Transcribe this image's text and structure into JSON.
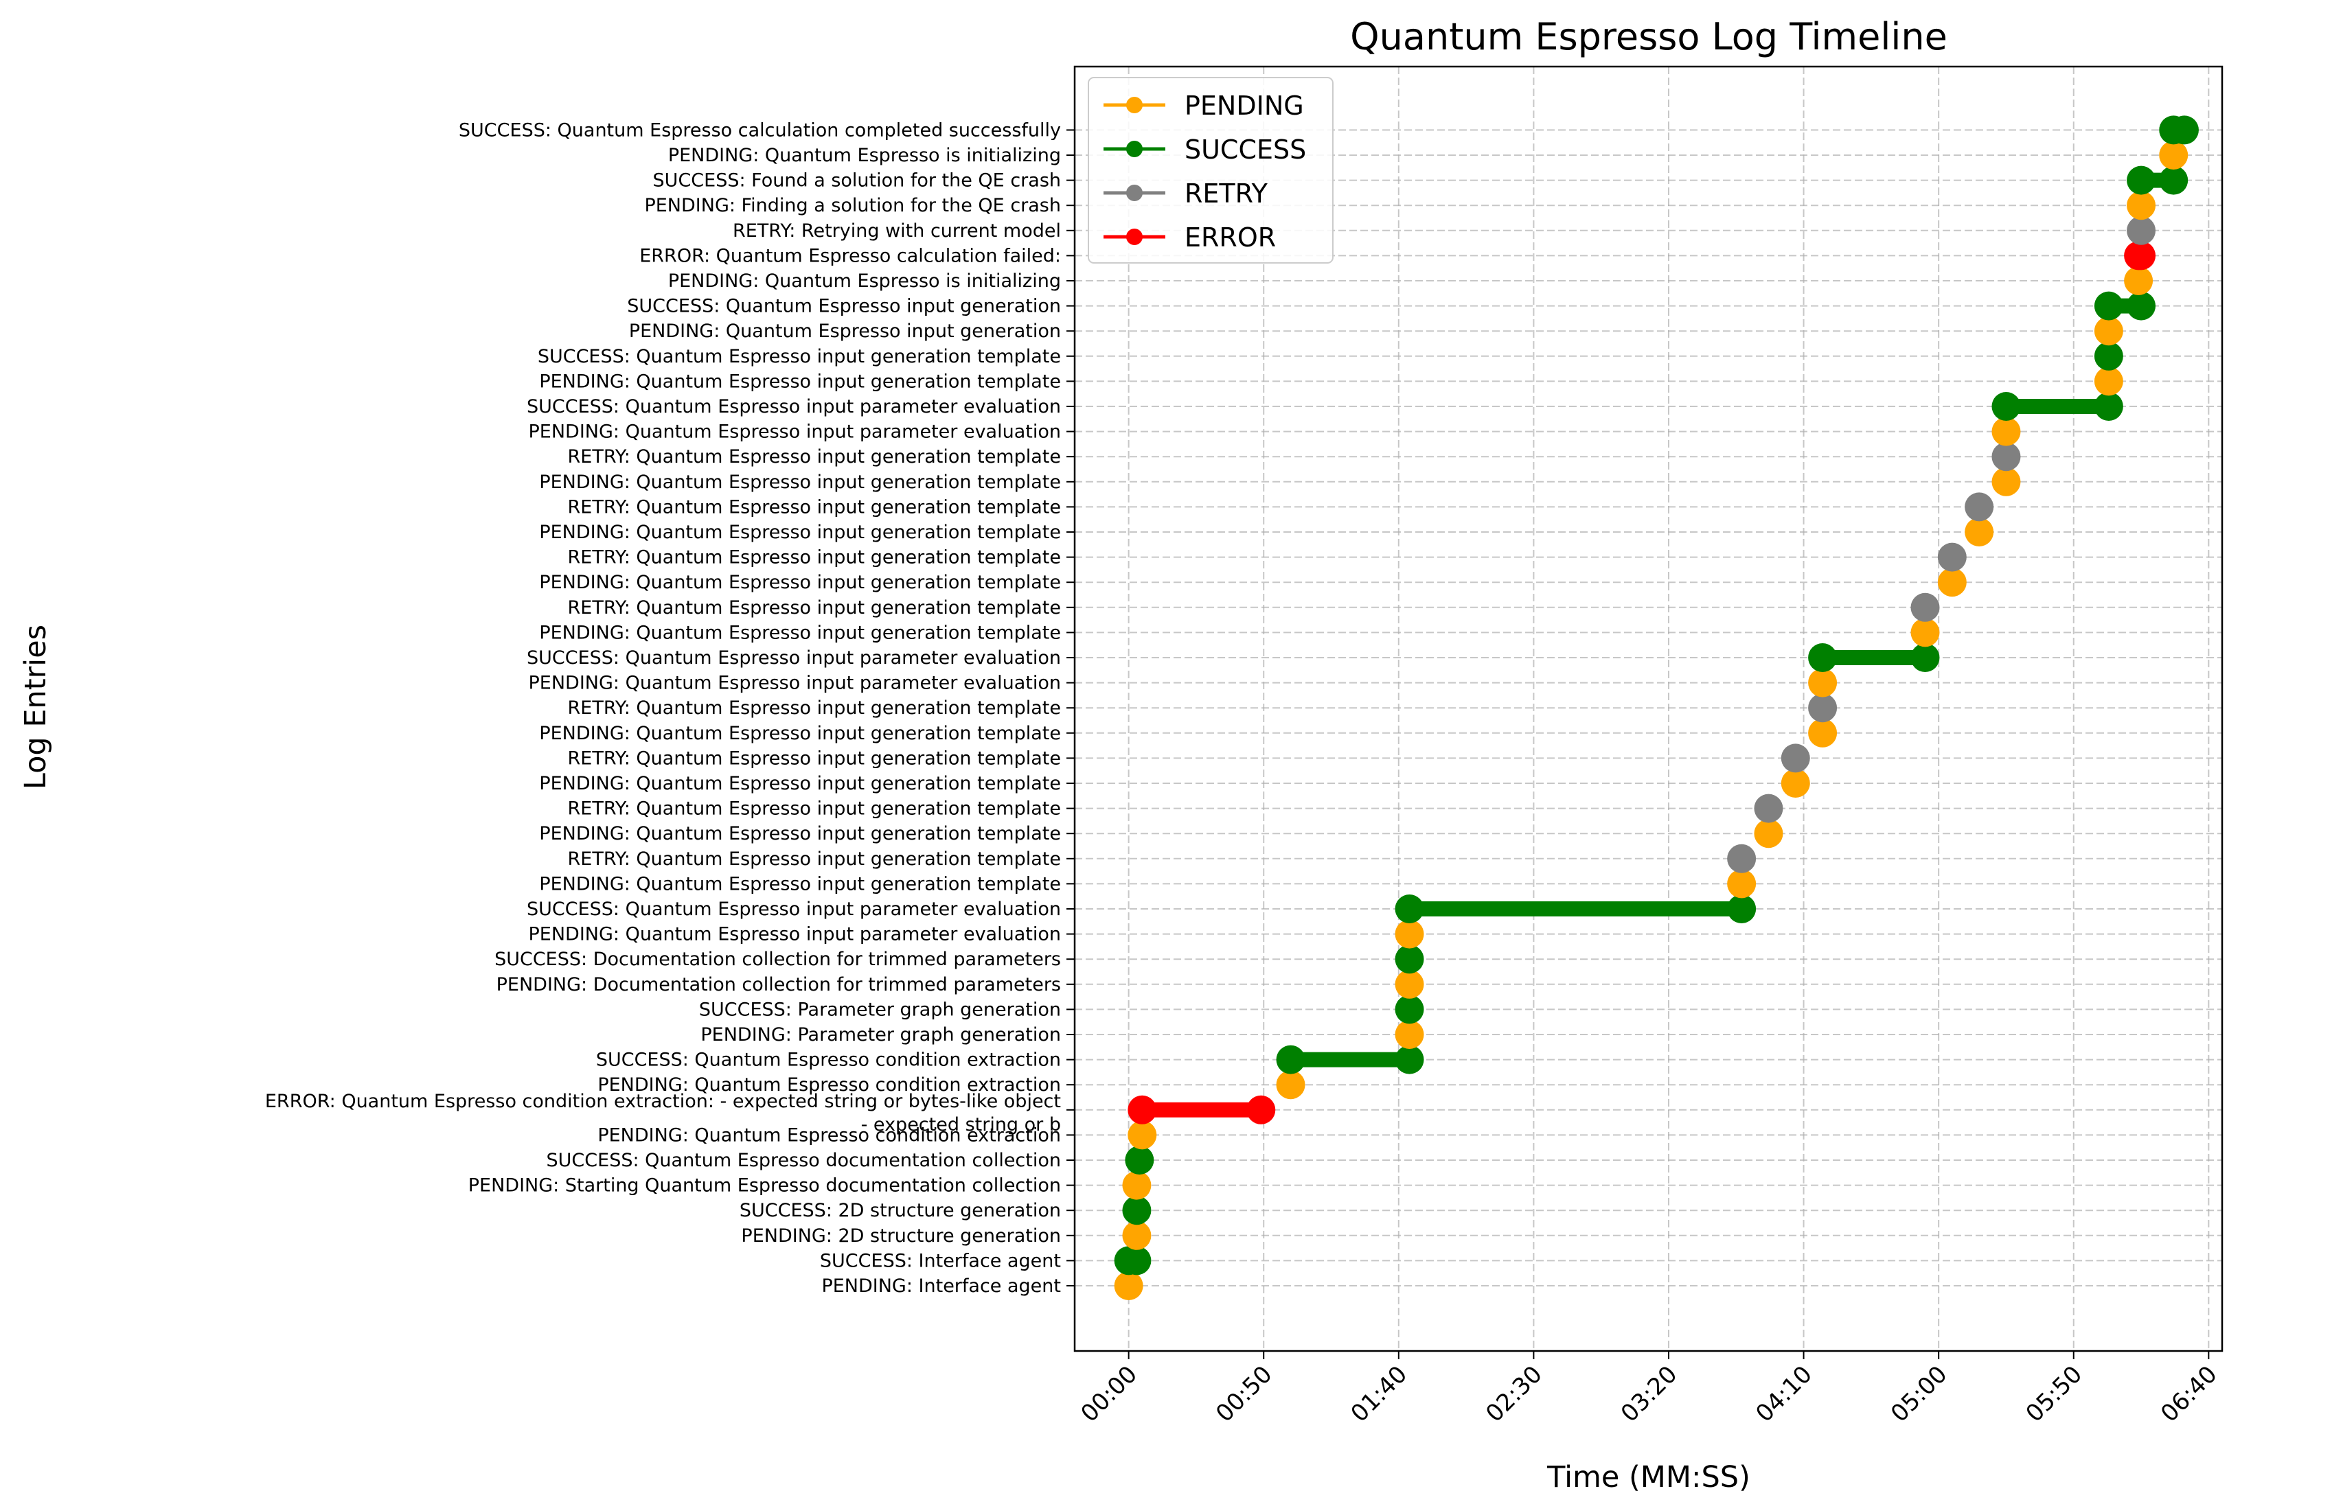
{
  "chart_data": {
    "type": "timeline",
    "title": "Quantum Espresso Log Timeline",
    "xlabel": "Time (MM:SS)",
    "ylabel": "Log Entries",
    "xlim": [
      -20,
      405
    ],
    "xticks": [
      0,
      50,
      100,
      150,
      200,
      250,
      300,
      350,
      400
    ],
    "xtick_labels": [
      "00:00",
      "00:50",
      "01:40",
      "02:30",
      "03:20",
      "04:10",
      "05:00",
      "05:50",
      "06:40"
    ],
    "grid": true,
    "legend_position": "top-left",
    "legend": [
      {
        "status": "PENDING",
        "label": "PENDING",
        "color": "#ffa500"
      },
      {
        "status": "SUCCESS",
        "label": "SUCCESS",
        "color": "#008000"
      },
      {
        "status": "RETRY",
        "label": "RETRY",
        "color": "#808080"
      },
      {
        "status": "ERROR",
        "label": "ERROR",
        "color": "#ff0000"
      }
    ],
    "entries": [
      {
        "label": "PENDING: Interface agent",
        "status": "PENDING",
        "time": 0
      },
      {
        "label": "SUCCESS: Interface agent",
        "status": "SUCCESS",
        "time": 0,
        "end": 3
      },
      {
        "label": "PENDING: 2D structure generation",
        "status": "PENDING",
        "time": 3
      },
      {
        "label": "SUCCESS: 2D structure generation",
        "status": "SUCCESS",
        "time": 3
      },
      {
        "label": "PENDING: Starting Quantum Espresso documentation collection",
        "status": "PENDING",
        "time": 3
      },
      {
        "label": "SUCCESS: Quantum Espresso documentation collection",
        "status": "SUCCESS",
        "time": 4
      },
      {
        "label": "PENDING: Quantum Espresso condition extraction",
        "status": "PENDING",
        "time": 5
      },
      {
        "label": "ERROR: Quantum Espresso condition extraction: - expected string or bytes-like object\n- expected string or b",
        "status": "ERROR",
        "time": 5,
        "end": 49
      },
      {
        "label": "PENDING: Quantum Espresso condition extraction",
        "status": "PENDING",
        "time": 60
      },
      {
        "label": "SUCCESS: Quantum Espresso condition extraction",
        "status": "SUCCESS",
        "time": 60,
        "end": 104
      },
      {
        "label": "PENDING: Parameter graph generation",
        "status": "PENDING",
        "time": 104
      },
      {
        "label": "SUCCESS: Parameter graph generation",
        "status": "SUCCESS",
        "time": 104
      },
      {
        "label": "PENDING: Documentation collection for trimmed parameters",
        "status": "PENDING",
        "time": 104
      },
      {
        "label": "SUCCESS: Documentation collection for trimmed parameters",
        "status": "SUCCESS",
        "time": 104
      },
      {
        "label": "PENDING: Quantum Espresso input parameter evaluation",
        "status": "PENDING",
        "time": 104
      },
      {
        "label": "SUCCESS: Quantum Espresso input parameter evaluation",
        "status": "SUCCESS",
        "time": 104,
        "end": 227
      },
      {
        "label": "PENDING: Quantum Espresso input generation template",
        "status": "PENDING",
        "time": 227
      },
      {
        "label": "RETRY: Quantum Espresso input generation template",
        "status": "RETRY",
        "time": 227
      },
      {
        "label": "PENDING: Quantum Espresso input generation template",
        "status": "PENDING",
        "time": 237
      },
      {
        "label": "RETRY: Quantum Espresso input generation template",
        "status": "RETRY",
        "time": 237
      },
      {
        "label": "PENDING: Quantum Espresso input generation template",
        "status": "PENDING",
        "time": 247
      },
      {
        "label": "RETRY: Quantum Espresso input generation template",
        "status": "RETRY",
        "time": 247
      },
      {
        "label": "PENDING: Quantum Espresso input generation template",
        "status": "PENDING",
        "time": 257
      },
      {
        "label": "RETRY: Quantum Espresso input generation template",
        "status": "RETRY",
        "time": 257
      },
      {
        "label": "PENDING: Quantum Espresso input parameter evaluation",
        "status": "PENDING",
        "time": 257
      },
      {
        "label": "SUCCESS: Quantum Espresso input parameter evaluation",
        "status": "SUCCESS",
        "time": 257,
        "end": 295
      },
      {
        "label": "PENDING: Quantum Espresso input generation template",
        "status": "PENDING",
        "time": 295
      },
      {
        "label": "RETRY: Quantum Espresso input generation template",
        "status": "RETRY",
        "time": 295
      },
      {
        "label": "PENDING: Quantum Espresso input generation template",
        "status": "PENDING",
        "time": 305
      },
      {
        "label": "RETRY: Quantum Espresso input generation template",
        "status": "RETRY",
        "time": 305
      },
      {
        "label": "PENDING: Quantum Espresso input generation template",
        "status": "PENDING",
        "time": 315
      },
      {
        "label": "RETRY: Quantum Espresso input generation template",
        "status": "RETRY",
        "time": 315
      },
      {
        "label": "PENDING: Quantum Espresso input generation template",
        "status": "PENDING",
        "time": 325
      },
      {
        "label": "RETRY: Quantum Espresso input generation template",
        "status": "RETRY",
        "time": 325
      },
      {
        "label": "PENDING: Quantum Espresso input parameter evaluation",
        "status": "PENDING",
        "time": 325
      },
      {
        "label": "SUCCESS: Quantum Espresso input parameter evaluation",
        "status": "SUCCESS",
        "time": 325,
        "end": 363
      },
      {
        "label": "PENDING: Quantum Espresso input generation template",
        "status": "PENDING",
        "time": 363
      },
      {
        "label": "SUCCESS: Quantum Espresso input generation template",
        "status": "SUCCESS",
        "time": 363
      },
      {
        "label": "PENDING: Quantum Espresso input generation",
        "status": "PENDING",
        "time": 363
      },
      {
        "label": "SUCCESS: Quantum Espresso input generation",
        "status": "SUCCESS",
        "time": 363,
        "end": 375
      },
      {
        "label": "PENDING: Quantum Espresso is initializing",
        "status": "PENDING",
        "time": 374
      },
      {
        "label": "ERROR: Quantum Espresso calculation failed: ",
        "status": "ERROR",
        "time": 374,
        "end": 375
      },
      {
        "label": "RETRY: Retrying with current model",
        "status": "RETRY",
        "time": 375
      },
      {
        "label": "PENDING: Finding a solution for the QE crash",
        "status": "PENDING",
        "time": 375
      },
      {
        "label": "SUCCESS: Found a solution for the QE crash",
        "status": "SUCCESS",
        "time": 375,
        "end": 387
      },
      {
        "label": "PENDING: Quantum Espresso is initializing",
        "status": "PENDING",
        "time": 387
      },
      {
        "label": "SUCCESS: Quantum Espresso calculation completed successfully",
        "status": "SUCCESS",
        "time": 387,
        "end": 391
      }
    ]
  }
}
